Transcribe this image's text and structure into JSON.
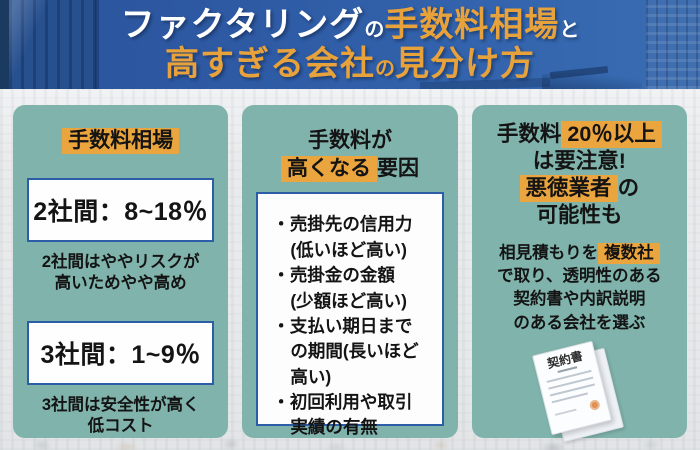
{
  "header": {
    "line1": [
      "ファクタリング",
      "の",
      "手数料相場",
      "と"
    ],
    "line2": [
      "高すぎる会社",
      "の",
      "見分け方"
    ]
  },
  "cards": {
    "market": {
      "title": "手数料相場",
      "range_2party": "2社間：8~18％",
      "note_2party_l1": "2社間はややリスクが",
      "note_2party_l2": "高いためやや高め",
      "range_3party": "3社間：1~9％",
      "note_3party_l1": "3社間は安全性が高く",
      "note_3party_l2": "低コスト"
    },
    "factors": {
      "title_l1": "手数料が",
      "title_l2_hl": "高くなる",
      "title_l2_rest": "要因",
      "bullets": [
        "売掛先の信用力\n(低いほど高い)",
        "売掛金の金額\n(少額ほど高い)",
        "支払い期日まで\nの期間(長いほど\n高い)",
        "初回利用や取引\n実績の有無"
      ]
    },
    "warning": {
      "title_l1_pre": "手数料",
      "title_l1_hl": "20％以上",
      "title_l2": "は要注意!",
      "title_l3_hl": "悪徳業者",
      "title_l3_post": "の",
      "title_l4": "可能性も",
      "body_l1_pre": "相見積もりを",
      "body_l1_hl": "複数社",
      "body_l2": "で取り、透明性のある",
      "body_l3": "契約書や内訳説明",
      "body_l4": "のある会社を選ぶ",
      "doc_label": "契約書"
    }
  },
  "colors": {
    "header_blue": "#2E5BA6",
    "accent_orange": "#E9A53E",
    "card_teal": "#7FB3AB",
    "box_border_blue": "#2B5EA7",
    "text_black": "#141414"
  }
}
